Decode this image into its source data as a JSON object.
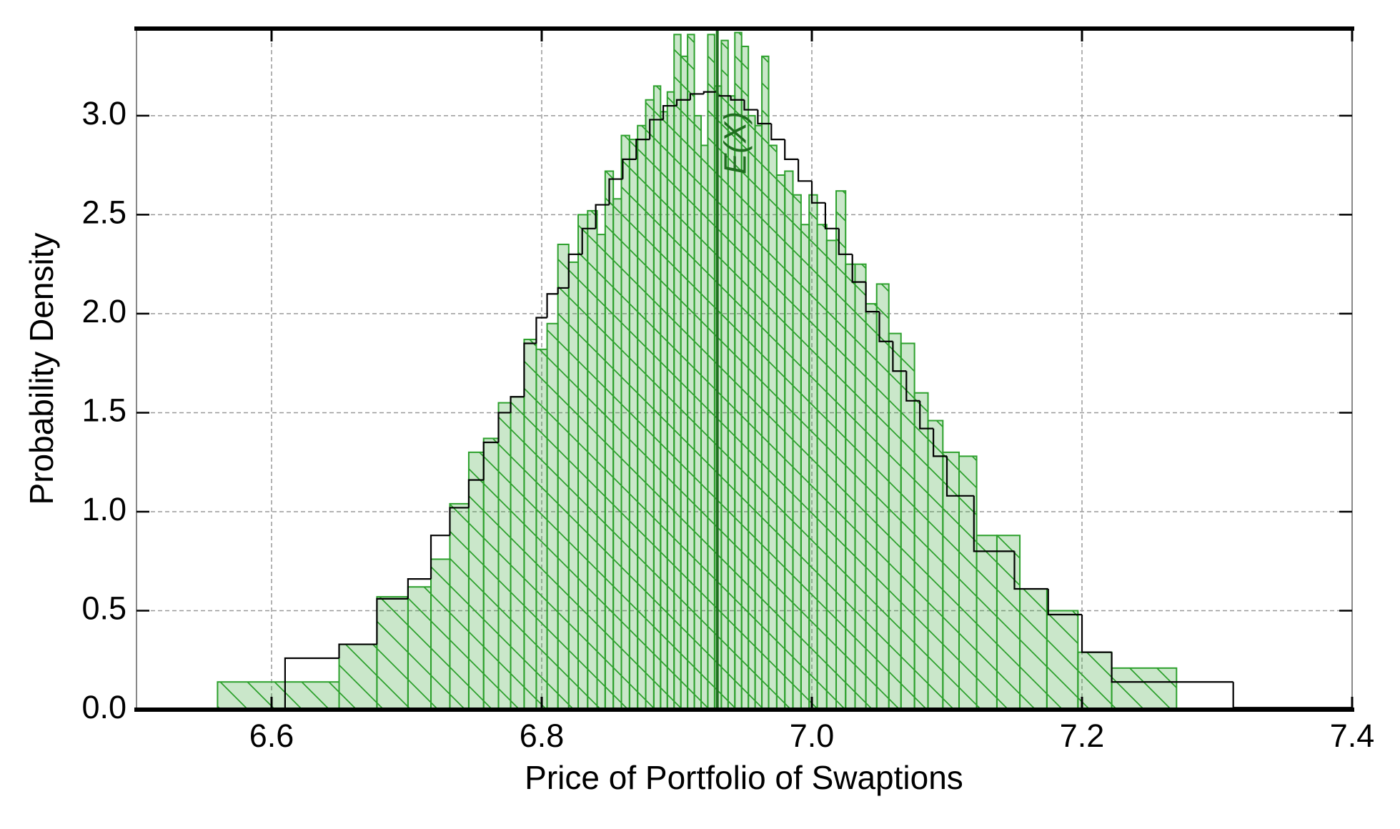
{
  "chart_data": {
    "type": "histogram",
    "xlabel": "Price of Portfolio of Swaptions",
    "ylabel": "Probability Density",
    "xlim": [
      6.5,
      7.4
    ],
    "ylim": [
      0,
      3.44
    ],
    "xticks": [
      6.6,
      6.8,
      {
        "value": 7.0,
        "label": "7.0"
      },
      7.2,
      7.4
    ],
    "yticks": [
      {
        "value": 0,
        "label": "0.0"
      },
      0.5,
      {
        "value": 1,
        "label": "1.0"
      },
      1.5,
      {
        "value": 2,
        "label": "2.0"
      },
      2.5,
      {
        "value": 3,
        "label": "3.0"
      }
    ],
    "grid": true,
    "series": [
      {
        "histtype": "stepfilled",
        "hatch": true,
        "color": "#2ca02c",
        "bins": [
          6.56,
          6.65,
          6.678,
          6.701,
          6.718,
          6.732,
          6.746,
          6.757,
          6.768,
          6.777,
          6.787,
          6.796,
          6.804,
          6.812,
          6.82,
          6.827,
          6.834,
          6.841,
          6.847,
          6.853,
          6.859,
          6.865,
          6.871,
          6.877,
          6.883,
          6.888,
          6.893,
          6.898,
          6.903,
          6.908,
          6.913,
          6.918,
          6.923,
          6.928,
          6.933,
          6.938,
          6.943,
          6.948,
          6.953,
          6.958,
          6.963,
          6.968,
          6.974,
          6.98,
          6.986,
          6.992,
          6.998,
          7.004,
          7.011,
          7.018,
          7.025,
          7.032,
          7.04,
          7.048,
          7.057,
          7.066,
          7.076,
          7.086,
          7.097,
          7.109,
          7.122,
          7.137,
          7.154,
          7.174,
          7.197,
          7.222,
          7.27
        ],
        "values": [
          0.14,
          0.33,
          0.57,
          0.62,
          0.76,
          1.04,
          1.3,
          1.37,
          1.55,
          1.58,
          1.87,
          1.82,
          1.95,
          2.35,
          2.26,
          2.5,
          2.52,
          2.4,
          2.72,
          2.58,
          2.9,
          2.88,
          2.95,
          3.08,
          3.15,
          3.02,
          3.12,
          3.41,
          3.3,
          3.41,
          3.0,
          2.85,
          3.41,
          3.15,
          3.38,
          3.1,
          3.42,
          3.35,
          3.0,
          2.95,
          3.3,
          2.85,
          2.7,
          2.72,
          2.6,
          2.45,
          2.6,
          2.45,
          2.37,
          2.62,
          2.25,
          2.25,
          2.05,
          2.15,
          1.9,
          1.85,
          1.6,
          1.46,
          1.3,
          1.28,
          0.88,
          0.88,
          0.61,
          0.5,
          0.29,
          0.21
        ]
      },
      {
        "histtype": "step",
        "hatch": false,
        "color": "#000000",
        "bins": [
          6.61,
          6.65,
          6.678,
          6.701,
          6.718,
          6.732,
          6.746,
          6.757,
          6.768,
          6.777,
          6.787,
          6.796,
          6.804,
          6.812,
          6.82,
          6.83,
          6.84,
          6.85,
          6.86,
          6.87,
          6.88,
          6.89,
          6.9,
          6.91,
          6.92,
          6.93,
          6.94,
          6.95,
          6.96,
          6.97,
          6.98,
          6.99,
          7.0,
          7.01,
          7.02,
          7.03,
          7.04,
          7.05,
          7.06,
          7.07,
          7.08,
          7.09,
          7.1,
          7.12,
          7.15,
          7.175,
          7.2,
          7.222,
          7.312,
          7.4
        ],
        "values": [
          0.26,
          0.33,
          0.56,
          0.66,
          0.88,
          1.02,
          1.16,
          1.35,
          1.5,
          1.58,
          1.85,
          1.98,
          2.1,
          2.13,
          2.3,
          2.43,
          2.55,
          2.68,
          2.78,
          2.88,
          2.98,
          3.05,
          3.08,
          3.11,
          3.12,
          3.1,
          3.08,
          3.03,
          2.96,
          2.88,
          2.78,
          2.67,
          2.56,
          2.43,
          2.3,
          2.16,
          2.01,
          1.86,
          1.71,
          1.56,
          1.42,
          1.28,
          1.08,
          0.8,
          0.61,
          0.48,
          0.29,
          0.14,
          0.01
        ]
      }
    ],
    "mean_line": {
      "value": 6.93,
      "label": "E(X)",
      "color": "#1e6e1e"
    }
  }
}
